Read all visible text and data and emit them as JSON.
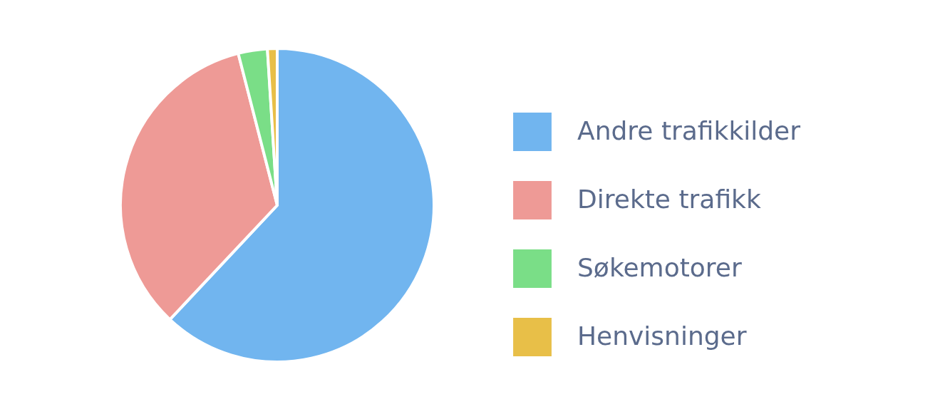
{
  "chart_data": {
    "type": "pie",
    "categories": [
      "Andre trafikkilder",
      "Direkte trafikk",
      "Søkemotorer",
      "Henvisninger"
    ],
    "values": [
      62,
      34,
      3,
      1
    ],
    "colors": [
      "#71b5ef",
      "#ee9a96",
      "#7ade87",
      "#e8bf48"
    ],
    "legend": "right"
  }
}
